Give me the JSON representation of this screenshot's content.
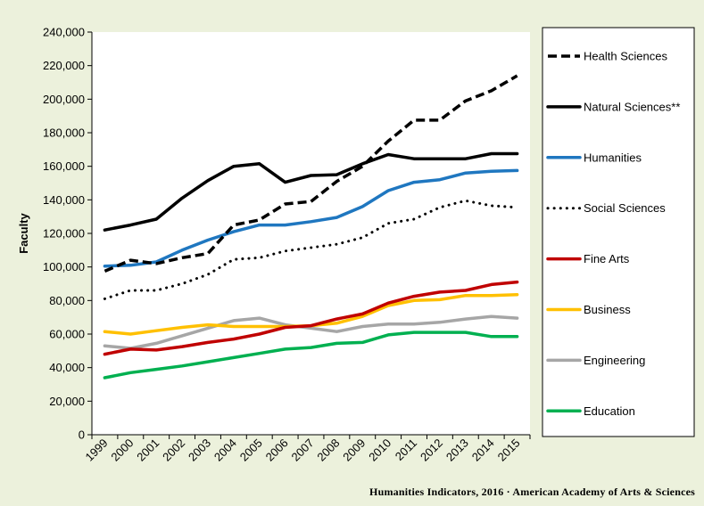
{
  "chart_data": {
    "type": "line",
    "title": "",
    "xlabel": "",
    "ylabel": "Faculty",
    "ylim": [
      0,
      240000
    ],
    "yticks": [
      "0",
      "20,000",
      "40,000",
      "60,000",
      "80,000",
      "100,000",
      "120,000",
      "140,000",
      "160,000",
      "180,000",
      "200,000",
      "220,000",
      "240,000"
    ],
    "x": [
      "1999",
      "2000",
      "2001",
      "2002",
      "2003",
      "2004",
      "2005",
      "2006",
      "2007",
      "2008",
      "2009",
      "2010",
      "2011",
      "2012",
      "2013",
      "2014",
      "2015"
    ],
    "grid": false,
    "legend": "right",
    "series": [
      {
        "name": "Health Sciences",
        "color": "#000000",
        "style": "dashed",
        "values": [
          97500,
          104000,
          102000,
          105500,
          108000,
          125000,
          128000,
          137500,
          139000,
          151000,
          160000,
          175000,
          187500,
          187500,
          199000,
          205000,
          214000
        ]
      },
      {
        "name": "Natural Sciences**",
        "color": "#000000",
        "style": "solid",
        "values": [
          122000,
          125000,
          128500,
          141000,
          151500,
          160000,
          161500,
          150500,
          154500,
          155000,
          161500,
          167000,
          164500,
          164500,
          164500,
          167500,
          167500
        ]
      },
      {
        "name": "Humanities",
        "color": "#1f77c0",
        "style": "solid",
        "values": [
          100500,
          101000,
          103000,
          110000,
          116000,
          121000,
          125000,
          125000,
          127000,
          129500,
          136000,
          145500,
          150500,
          152000,
          156000,
          157000,
          157500
        ]
      },
      {
        "name": "Social Sciences",
        "color": "#000000",
        "style": "dotted",
        "values": [
          81000,
          86000,
          86000,
          90000,
          95500,
          104500,
          105500,
          109500,
          111500,
          113500,
          117500,
          126000,
          128500,
          135500,
          139500,
          136500,
          135500
        ]
      },
      {
        "name": "Fine Arts",
        "color": "#c00000",
        "style": "solid",
        "values": [
          48000,
          51000,
          50500,
          52500,
          55000,
          57000,
          60000,
          64000,
          65000,
          69000,
          72000,
          78500,
          82500,
          85000,
          86000,
          89500,
          91000
        ]
      },
      {
        "name": "Business",
        "color": "#ffc000",
        "style": "solid",
        "values": [
          61500,
          60000,
          62000,
          64000,
          65500,
          64500,
          64500,
          64500,
          65000,
          66500,
          70500,
          77000,
          80000,
          80500,
          83000,
          83000,
          83500
        ]
      },
      {
        "name": "Engineering",
        "color": "#a6a6a6",
        "style": "solid",
        "values": [
          53000,
          51500,
          54500,
          59000,
          63500,
          68000,
          69500,
          65500,
          63500,
          61500,
          64500,
          66000,
          66000,
          67000,
          69000,
          70500,
          69500
        ]
      },
      {
        "name": "Education",
        "color": "#00b050",
        "style": "solid",
        "values": [
          34000,
          37000,
          39000,
          41000,
          43500,
          46000,
          48500,
          51000,
          52000,
          54500,
          55000,
          59500,
          61000,
          61000,
          61000,
          58500,
          58500
        ]
      }
    ]
  },
  "credit": "Humanities Indicators, 2016 · American Academy of Arts & Sciences"
}
